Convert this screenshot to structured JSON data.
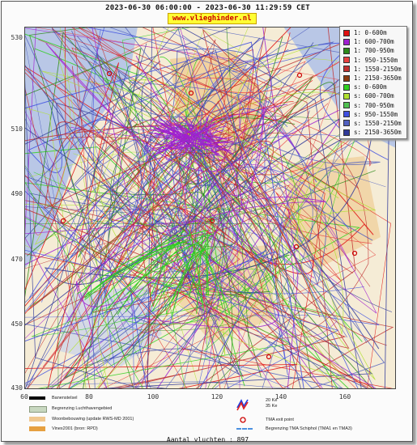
{
  "header": {
    "title": "2023-06-30 06:00:00 - 2023-06-30 11:29:59 CET",
    "site": "www.vlieghinder.nl"
  },
  "map": {
    "y_ticks": [
      "530",
      "510",
      "490",
      "470",
      "450",
      "430"
    ],
    "x_ticks": [
      "60",
      "80",
      "100",
      "120",
      "140",
      "160"
    ],
    "colors": {
      "water": "#b9c7e6",
      "land": "#f5ecd6",
      "urban": "#efc88a"
    }
  },
  "legend": {
    "items": [
      {
        "label": "1: 0-600m",
        "color": "#e01010"
      },
      {
        "label": "1: 600-700m",
        "color": "#a020d0"
      },
      {
        "label": "1: 700-950m",
        "color": "#2d8a1a"
      },
      {
        "label": "1: 950-1550m",
        "color": "#e84040"
      },
      {
        "label": "1: 1550-2150m",
        "color": "#c03030"
      },
      {
        "label": "1: 2150-3650m",
        "color": "#8a3a10"
      },
      {
        "label": "s: 0-600m",
        "color": "#30d020"
      },
      {
        "label": "s: 600-700m",
        "color": "#b0e030"
      },
      {
        "label": "s: 700-950m",
        "color": "#50c050"
      },
      {
        "label": "s: 950-1550m",
        "color": "#4050e0"
      },
      {
        "label": "s: 1550-2150m",
        "color": "#5060c0"
      },
      {
        "label": "s: 2150-3650m",
        "color": "#303a9a"
      }
    ]
  },
  "bottom_legend": {
    "left": [
      {
        "label": "Banenstelsel",
        "color": "#000000"
      },
      {
        "label": "Begrenzing Luchthavengebied",
        "color": "#c8d8c0"
      },
      {
        "label": "Woonbebouwing (update RWS-MD 2001)",
        "color": "#f0c890"
      },
      {
        "label": "Vinex2001 (bron: RPD)",
        "color": "#e6a040"
      }
    ],
    "right": [
      {
        "label": "20 Ke",
        "color": "#2040e0"
      },
      {
        "label": "35 Ke",
        "color": "#e02020"
      },
      {
        "label": "TMA exit point",
        "color": "#cc0000"
      },
      {
        "label": "Begrenzing TMA Schiphol  (TMA1 en TMA3)",
        "color": "#4a90e0"
      }
    ]
  },
  "footer": {
    "count": "Aantal vluchten : 897"
  }
}
